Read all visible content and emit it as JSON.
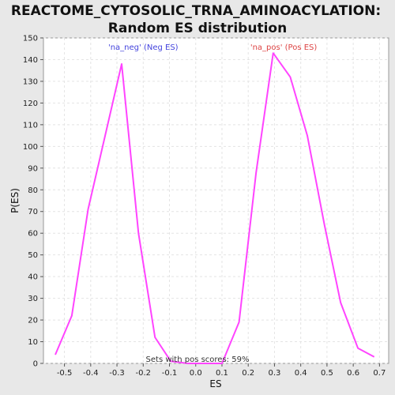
{
  "chart_data": {
    "type": "line",
    "title_line1": "REACTOME_CYTOSOLIC_TRNA_AMINOACYLATION:",
    "title_line2": "Random ES distribution",
    "xlabel": "ES",
    "ylabel": "P(ES)",
    "xlim": [
      -0.58,
      0.735
    ],
    "ylim": [
      0,
      150
    ],
    "x_ticks": [
      -0.5,
      -0.4,
      -0.3,
      -0.2,
      -0.1,
      0.0,
      0.1,
      0.2,
      0.3,
      0.4,
      0.5,
      0.6,
      0.7
    ],
    "x_tick_labels": [
      "-0.5",
      "-0.4",
      "-0.3",
      "-0.2",
      "-0.1",
      "0.0",
      "0.1",
      "0.2",
      "0.3",
      "0.4",
      "0.5",
      "0.6",
      "0.7"
    ],
    "y_ticks": [
      0,
      10,
      20,
      30,
      40,
      50,
      60,
      70,
      80,
      90,
      100,
      110,
      120,
      130,
      140,
      150
    ],
    "y_tick_labels": [
      "0",
      "10",
      "20",
      "30",
      "40",
      "50",
      "60",
      "70",
      "80",
      "90",
      "100",
      "110",
      "120",
      "130",
      "140",
      "150"
    ],
    "grid": true,
    "line_color": "#ff44ff",
    "series": [
      {
        "x": [
          -0.535,
          -0.472,
          -0.41,
          -0.345,
          -0.282,
          -0.218,
          -0.155,
          -0.095,
          -0.03,
          0.035,
          0.1,
          0.165,
          0.23,
          0.295,
          0.36,
          0.425,
          0.49,
          0.552,
          0.618,
          0.68
        ],
        "values": [
          4,
          22,
          71,
          105,
          138,
          60,
          12,
          1,
          0,
          0,
          0,
          19,
          88,
          143,
          132,
          105,
          64,
          28,
          7,
          3
        ]
      }
    ],
    "annotations": [
      {
        "id": "neg",
        "text": "'na_neg' (Neg ES)",
        "color": "#4444dd",
        "x": -0.2,
        "y": 147
      },
      {
        "id": "pos",
        "text": "'na_pos' (Pos ES)",
        "color": "#dd4444",
        "x": 0.335,
        "y": 147
      }
    ],
    "footer_text": "Sets with pos scores: 59%"
  }
}
